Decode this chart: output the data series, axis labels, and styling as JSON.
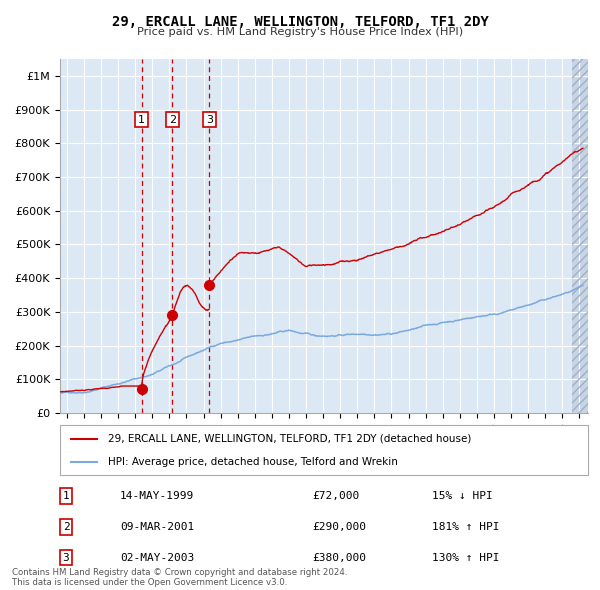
{
  "title": "29, ERCALL LANE, WELLINGTON, TELFORD, TF1 2DY",
  "subtitle": "Price paid vs. HM Land Registry's House Price Index (HPI)",
  "bg_color": "#dce9f5",
  "ylim": [
    0,
    1050000
  ],
  "yticks": [
    0,
    100000,
    200000,
    300000,
    400000,
    500000,
    600000,
    700000,
    800000,
    900000,
    1000000
  ],
  "ytick_labels": [
    "£0",
    "£100K",
    "£200K",
    "£300K",
    "£400K",
    "£500K",
    "£600K",
    "£700K",
    "£800K",
    "£900K",
    "£1M"
  ],
  "xlim_start": 1994.6,
  "xlim_end": 2025.5,
  "xticks": [
    1995,
    1996,
    1997,
    1998,
    1999,
    2000,
    2001,
    2002,
    2003,
    2004,
    2005,
    2006,
    2007,
    2008,
    2009,
    2010,
    2011,
    2012,
    2013,
    2014,
    2015,
    2016,
    2017,
    2018,
    2019,
    2020,
    2021,
    2022,
    2023,
    2024,
    2025
  ],
  "sale_dates_num": [
    1999.37,
    2001.18,
    2003.34
  ],
  "sale_prices": [
    72000,
    290000,
    380000
  ],
  "sale_labels": [
    "1",
    "2",
    "3"
  ],
  "sale_dates_str": [
    "14-MAY-1999",
    "09-MAR-2001",
    "02-MAY-2003"
  ],
  "sale_prices_str": [
    "£72,000",
    "£290,000",
    "£380,000"
  ],
  "sale_pct_str": [
    "15% ↓ HPI",
    "181% ↑ HPI",
    "130% ↑ HPI"
  ],
  "red_line_color": "#cc0000",
  "blue_line_color": "#7aaadd",
  "marker_color": "#cc0000",
  "vline_color": "#cc0000",
  "legend_label_red": "29, ERCALL LANE, WELLINGTON, TELFORD, TF1 2DY (detached house)",
  "legend_label_blue": "HPI: Average price, detached house, Telford and Wrekin",
  "footer": "Contains HM Land Registry data © Crown copyright and database right 2024.\nThis data is licensed under the Open Government Licence v3.0.",
  "grid_color": "#ffffff",
  "hatch_start": 2024.58
}
